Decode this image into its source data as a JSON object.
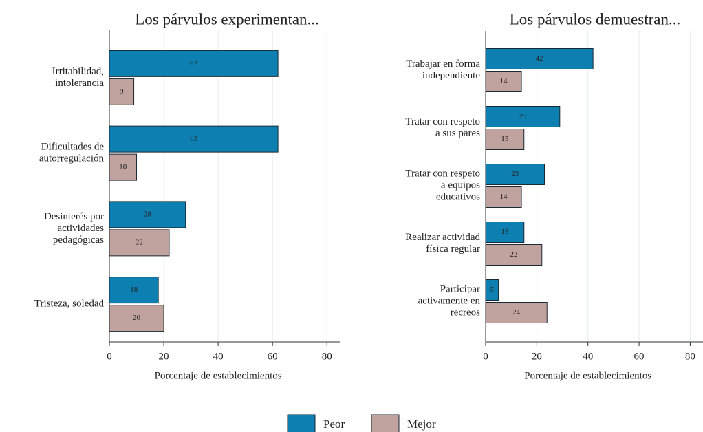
{
  "chart_data": [
    {
      "type": "bar",
      "orientation": "horizontal",
      "title": "Los párvulos experimentan...",
      "categories": [
        [
          "Irritabilidad,",
          "intolerancia"
        ],
        [
          "Dificultades de",
          "autorregulación"
        ],
        [
          "Desinterés por",
          "actividades",
          "pedagógicas"
        ],
        [
          "Tristeza, soledad"
        ]
      ],
      "series": [
        {
          "name": "Peor",
          "color": "#0e7fb1",
          "values": [
            62,
            62,
            28,
            18
          ]
        },
        {
          "name": "Mejor",
          "color": "#c0a29e",
          "values": [
            9,
            10,
            22,
            20
          ]
        }
      ],
      "xlabel": "Porcentaje de establecimientos",
      "xlim": [
        0,
        85
      ],
      "xticks": [
        0,
        20,
        40,
        60,
        80
      ],
      "grid": true
    },
    {
      "type": "bar",
      "orientation": "horizontal",
      "title": "Los párvulos demuestran...",
      "categories": [
        [
          "Trabajar en forma",
          "independiente"
        ],
        [
          "Tratar con respeto",
          "a sus pares"
        ],
        [
          "Tratar con respeto",
          "a equipos",
          "educativos"
        ],
        [
          "Realizar actividad",
          "física regular"
        ],
        [
          "Participar",
          "activamente en",
          "recreos"
        ]
      ],
      "series": [
        {
          "name": "Peor",
          "color": "#0e7fb1",
          "values": [
            42,
            29,
            23,
            15,
            5
          ]
        },
        {
          "name": "Mejor",
          "color": "#c0a29e",
          "values": [
            14,
            15,
            14,
            22,
            24
          ]
        }
      ],
      "xlabel": "Porcentaje de establecimientos",
      "xlim": [
        0,
        85
      ],
      "xticks": [
        0,
        20,
        40,
        60,
        80
      ],
      "grid": true
    }
  ]
}
